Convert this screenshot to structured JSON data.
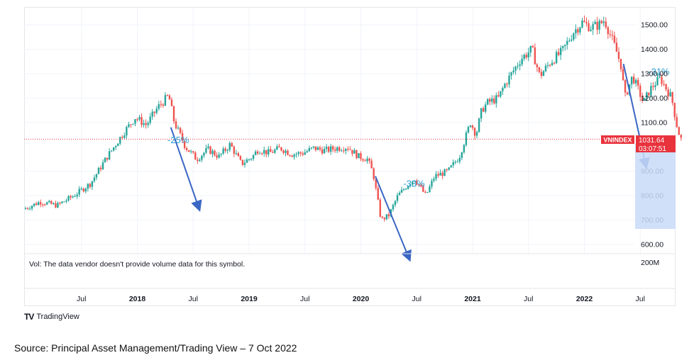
{
  "chart_data": {
    "type": "candlestick",
    "symbol": "VNINDEX",
    "last_price": "1031.64",
    "countdown": "03:07:51",
    "last_value": 1031.64,
    "volume_note": "Vol: The data vendor doesn't provide volume data for this symbol.",
    "volume_tick": "200M",
    "y_ticks": [
      {
        "label": "1500.00",
        "value": 1500
      },
      {
        "label": "1400.00",
        "value": 1400
      },
      {
        "label": "1300.00",
        "value": 1300
      },
      {
        "label": "1200.00",
        "value": 1200
      },
      {
        "label": "1100.00",
        "value": 1100
      },
      {
        "label": "900.00",
        "value": 900
      },
      {
        "label": "800.00",
        "value": 800
      },
      {
        "label": "700.00",
        "value": 700
      },
      {
        "label": "600.00",
        "value": 600
      }
    ],
    "x_ticks": [
      {
        "label": "Jul",
        "t": 0.5,
        "bold": false
      },
      {
        "label": "2018",
        "t": 1.0,
        "bold": true
      },
      {
        "label": "Jul",
        "t": 1.5,
        "bold": false
      },
      {
        "label": "2019",
        "t": 2.0,
        "bold": true
      },
      {
        "label": "Jul",
        "t": 2.5,
        "bold": false
      },
      {
        "label": "2020",
        "t": 3.0,
        "bold": true
      },
      {
        "label": "Jul",
        "t": 3.5,
        "bold": false
      },
      {
        "label": "2021",
        "t": 4.0,
        "bold": true
      },
      {
        "label": "Jul",
        "t": 4.5,
        "bold": false
      },
      {
        "label": "2022",
        "t": 5.0,
        "bold": true
      },
      {
        "label": "Jul",
        "t": 5.5,
        "bold": false
      }
    ],
    "price_path": [
      [
        0.0,
        745
      ],
      [
        0.15,
        775
      ],
      [
        0.3,
        760
      ],
      [
        0.45,
        800
      ],
      [
        0.6,
        850
      ],
      [
        0.75,
        960
      ],
      [
        0.9,
        1060
      ],
      [
        1.0,
        1120
      ],
      [
        1.1,
        1090
      ],
      [
        1.2,
        1160
      ],
      [
        1.3,
        1210
      ],
      [
        1.35,
        1100
      ],
      [
        1.45,
        1000
      ],
      [
        1.55,
        950
      ],
      [
        1.65,
        990
      ],
      [
        1.75,
        960
      ],
      [
        1.85,
        1010
      ],
      [
        1.95,
        930
      ],
      [
        2.05,
        960
      ],
      [
        2.1,
        990
      ],
      [
        2.2,
        975
      ],
      [
        2.3,
        995
      ],
      [
        2.4,
        970
      ],
      [
        2.5,
        975
      ],
      [
        2.6,
        995
      ],
      [
        2.7,
        985
      ],
      [
        2.8,
        995
      ],
      [
        2.9,
        1000
      ],
      [
        3.0,
        960
      ],
      [
        3.08,
        950
      ],
      [
        3.13,
        890
      ],
      [
        3.2,
        700
      ],
      [
        3.27,
        720
      ],
      [
        3.35,
        800
      ],
      [
        3.45,
        850
      ],
      [
        3.5,
        870
      ],
      [
        3.6,
        800
      ],
      [
        3.68,
        880
      ],
      [
        3.8,
        900
      ],
      [
        3.9,
        960
      ],
      [
        4.0,
        1100
      ],
      [
        4.05,
        1050
      ],
      [
        4.1,
        1150
      ],
      [
        4.15,
        1180
      ],
      [
        4.25,
        1200
      ],
      [
        4.3,
        1250
      ],
      [
        4.45,
        1360
      ],
      [
        4.55,
        1400
      ],
      [
        4.62,
        1290
      ],
      [
        4.72,
        1350
      ],
      [
        4.82,
        1390
      ],
      [
        4.92,
        1470
      ],
      [
        5.0,
        1510
      ],
      [
        5.08,
        1490
      ],
      [
        5.15,
        1500
      ],
      [
        5.2,
        1520
      ],
      [
        5.3,
        1400
      ],
      [
        5.35,
        1330
      ],
      [
        5.38,
        1200
      ],
      [
        5.45,
        1290
      ],
      [
        5.55,
        1180
      ],
      [
        5.6,
        1230
      ],
      [
        5.65,
        1260
      ],
      [
        5.7,
        1280
      ],
      [
        5.75,
        1240
      ],
      [
        5.8,
        1200
      ],
      [
        5.85,
        1080
      ],
      [
        5.88,
        1031.64
      ]
    ],
    "annotations": [
      {
        "text": "-25%",
        "t": 1.27,
        "v": 1015,
        "color": "#2a9fd6"
      },
      {
        "text": "-33%",
        "t": 3.38,
        "v": 837,
        "color": "#2a9fd6"
      },
      {
        "text": "-31%",
        "t": 5.57,
        "v": 1296,
        "color": "#2a9fd6"
      }
    ],
    "arrows": [
      {
        "t1": 1.3,
        "v1": 1080,
        "t2": 1.55,
        "v2": 750
      },
      {
        "t1": 3.13,
        "v1": 880,
        "t2": 3.43,
        "v2": 545
      },
      {
        "t1": 5.35,
        "v1": 1340,
        "t2": 5.55,
        "v2": 925
      }
    ]
  },
  "branding": {
    "name": "TradingView",
    "mark": "TV"
  },
  "source": "Source: Principal Asset Management/Trading View – 7 Oct 2022"
}
